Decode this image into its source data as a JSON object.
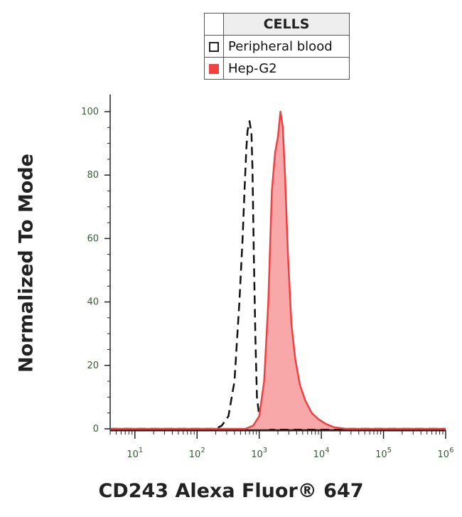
{
  "legend": {
    "header": "CELLS",
    "items": [
      {
        "label": "Peripheral blood",
        "style": "dashed-outline",
        "color": "#222222"
      },
      {
        "label": "Hep-G2",
        "style": "filled",
        "color": "#f04040"
      }
    ]
  },
  "chart_data": {
    "type": "area",
    "xlabel": "CD243 Alexa Fluor® 647",
    "ylabel": "Normalized To Mode",
    "xscale": "log",
    "xlim": [
      4,
      1000000
    ],
    "ylim": [
      0,
      100
    ],
    "xticks": [
      10,
      100,
      1000,
      10000,
      100000,
      1000000
    ],
    "xtick_labels": [
      {
        "base": "10",
        "exp": "1"
      },
      {
        "base": "10",
        "exp": "2"
      },
      {
        "base": "10",
        "exp": "3"
      },
      {
        "base": "10",
        "exp": "4"
      },
      {
        "base": "10",
        "exp": "5"
      },
      {
        "base": "10",
        "exp": "6"
      }
    ],
    "yticks": [
      0,
      20,
      40,
      60,
      80,
      100
    ],
    "series": [
      {
        "name": "Peripheral blood",
        "style": "dashed",
        "color": "#111111",
        "x": [
          4,
          200,
          250,
          320,
          400,
          480,
          540,
          580,
          620,
          650,
          700,
          750,
          780,
          820,
          870,
          920,
          1000,
          1100,
          1300,
          1600,
          2000,
          1000000
        ],
        "y": [
          0,
          0,
          1,
          4,
          15,
          40,
          60,
          75,
          88,
          94,
          97,
          93,
          82,
          55,
          28,
          10,
          4,
          1.5,
          0.5,
          0,
          0,
          0
        ]
      },
      {
        "name": "Hep-G2",
        "style": "filled",
        "color": "#f04040",
        "fill": "#f8a8a8",
        "x": [
          4,
          600,
          800,
          1000,
          1200,
          1400,
          1600,
          1800,
          2000,
          2200,
          2400,
          2600,
          2900,
          3300,
          3800,
          4500,
          5500,
          7000,
          9000,
          12000,
          16000,
          25000,
          1000000
        ],
        "y": [
          0,
          0,
          1,
          4,
          15,
          40,
          75,
          87,
          92,
          100,
          95,
          80,
          55,
          33,
          22,
          14,
          9,
          5,
          3,
          1.5,
          0.5,
          0,
          0
        ]
      }
    ]
  }
}
